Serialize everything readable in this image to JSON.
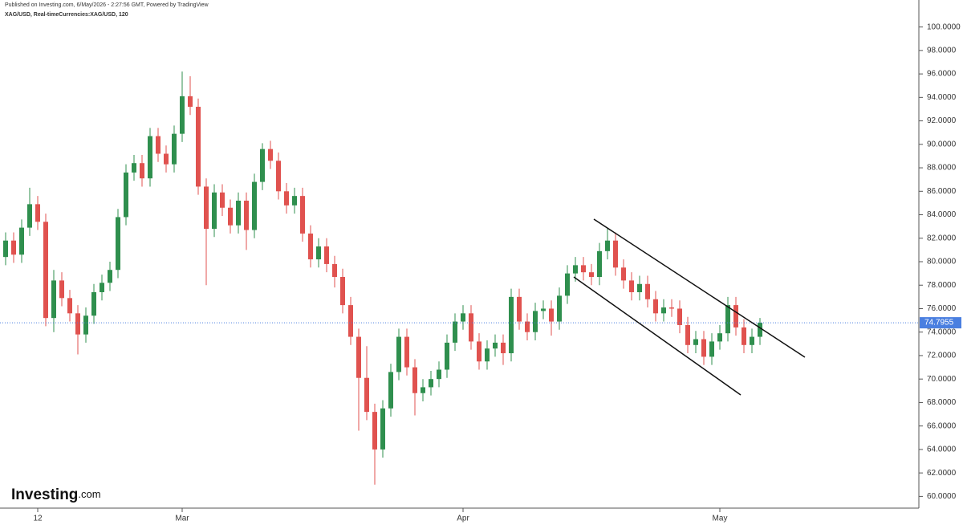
{
  "header": {
    "published": "Published on Investing.com, 6/May/2026 - 2:27:56 GMT, Powered by TradingView",
    "symbol": "XAG/USD, Real-timeCurrencies:XAG/USD, 120"
  },
  "logo": {
    "name": "Investing",
    "suffix": ".com"
  },
  "chart_data": {
    "type": "candlestick",
    "categories": [
      null,
      null,
      null,
      null,
      "12",
      null,
      null,
      null,
      null,
      null,
      null,
      null,
      null,
      null,
      null,
      null,
      null,
      null,
      null,
      null,
      null,
      null,
      "Mar",
      null,
      null,
      null,
      null,
      null,
      null,
      null,
      null,
      null,
      null,
      null,
      null,
      null,
      null,
      null,
      null,
      null,
      null,
      null,
      null,
      null,
      null,
      null,
      null,
      null,
      null,
      null,
      null,
      null,
      null,
      null,
      null,
      null,
      null,
      "Apr",
      null,
      null,
      null,
      null,
      null,
      null,
      null,
      null,
      null,
      null,
      null,
      null,
      null,
      null,
      null,
      null,
      null,
      null,
      null,
      null,
      null,
      null,
      null,
      null,
      null,
      null,
      null,
      null,
      null,
      null,
      null,
      "May",
      null,
      null,
      null,
      null,
      null
    ],
    "open": [
      80.4,
      81.8,
      80.6,
      82.9,
      84.9,
      83.4,
      75.2,
      78.4,
      76.9,
      75.6,
      73.8,
      75.4,
      77.4,
      78.2,
      79.3,
      83.8,
      87.6,
      88.4,
      87.1,
      90.7,
      89.2,
      88.3,
      90.9,
      94.1,
      93.2,
      86.4,
      82.8,
      85.9,
      84.6,
      83.1,
      85.2,
      82.7,
      86.8,
      89.6,
      88.6,
      86.0,
      84.8,
      85.6,
      82.4,
      80.2,
      81.3,
      79.8,
      78.7,
      76.3,
      73.6,
      70.1,
      67.2,
      64.0,
      67.5,
      70.6,
      73.6,
      71.0,
      68.8,
      69.3,
      70.0,
      70.8,
      73.1,
      74.9,
      75.6,
      73.2,
      71.5,
      72.6,
      73.1,
      72.2,
      77.0,
      74.9,
      74.0,
      75.8,
      76.0,
      74.9,
      77.1,
      79.0,
      79.7,
      79.1,
      78.7,
      80.9,
      81.8,
      79.5,
      78.4,
      77.4,
      78.1,
      76.8,
      75.6,
      76.1,
      76.0,
      74.6,
      72.9,
      73.4,
      71.9,
      73.2,
      73.9,
      76.3,
      74.4,
      72.9,
      73.6
    ],
    "high": [
      82.5,
      82.5,
      83.6,
      86.3,
      85.6,
      84.1,
      79.3,
      79.1,
      77.6,
      76.3,
      76.1,
      78.1,
      78.9,
      80.0,
      84.5,
      88.3,
      89.1,
      89.1,
      91.4,
      91.4,
      89.9,
      91.6,
      96.2,
      95.8,
      93.9,
      87.1,
      86.6,
      86.6,
      85.3,
      85.9,
      85.9,
      87.5,
      90.1,
      90.3,
      89.3,
      86.7,
      86.3,
      86.3,
      83.1,
      82.0,
      82.0,
      80.5,
      79.4,
      77.0,
      74.3,
      72.8,
      67.9,
      68.2,
      71.3,
      74.3,
      74.3,
      71.7,
      70.0,
      70.7,
      71.5,
      73.8,
      75.6,
      76.3,
      76.3,
      73.9,
      73.3,
      73.8,
      73.8,
      77.7,
      77.7,
      75.6,
      76.5,
      76.7,
      76.7,
      77.8,
      79.7,
      80.4,
      80.4,
      79.8,
      81.6,
      82.9,
      82.5,
      80.2,
      79.1,
      78.8,
      78.8,
      77.5,
      76.8,
      76.8,
      76.7,
      75.3,
      74.1,
      74.1,
      73.9,
      74.6,
      77.0,
      77.0,
      75.1,
      74.3,
      75.2
    ],
    "low": [
      79.7,
      79.9,
      79.9,
      82.2,
      82.7,
      74.5,
      74.0,
      76.2,
      74.9,
      72.1,
      73.1,
      74.7,
      76.7,
      77.5,
      78.6,
      83.1,
      86.9,
      86.4,
      86.4,
      88.5,
      87.6,
      87.6,
      90.2,
      92.5,
      85.7,
      78.0,
      82.1,
      83.9,
      82.4,
      82.4,
      81.0,
      82.0,
      86.1,
      87.9,
      85.3,
      84.1,
      84.1,
      81.7,
      79.5,
      79.5,
      79.1,
      77.8,
      75.6,
      72.9,
      65.6,
      66.5,
      61.0,
      63.3,
      66.8,
      69.9,
      70.3,
      66.9,
      68.1,
      68.6,
      69.3,
      70.1,
      72.4,
      74.2,
      72.5,
      70.8,
      70.8,
      71.9,
      71.2,
      71.5,
      74.2,
      73.3,
      73.3,
      75.1,
      73.7,
      74.2,
      76.4,
      78.3,
      78.4,
      78.0,
      78.0,
      80.2,
      78.8,
      77.7,
      76.7,
      76.7,
      76.1,
      74.9,
      74.9,
      75.3,
      73.9,
      72.2,
      72.2,
      71.2,
      71.2,
      72.5,
      73.2,
      73.7,
      72.2,
      72.2,
      72.9
    ],
    "close": [
      81.8,
      80.6,
      82.9,
      84.9,
      83.4,
      75.2,
      78.4,
      76.9,
      75.6,
      73.8,
      75.4,
      77.4,
      78.2,
      79.3,
      83.8,
      87.6,
      88.4,
      87.1,
      90.7,
      89.2,
      88.3,
      90.9,
      94.1,
      93.2,
      86.4,
      82.8,
      85.9,
      84.6,
      83.1,
      85.2,
      82.7,
      86.8,
      89.6,
      88.6,
      86.0,
      84.8,
      85.6,
      82.4,
      80.2,
      81.3,
      79.8,
      78.7,
      76.3,
      73.6,
      70.1,
      67.2,
      64.0,
      67.5,
      70.6,
      73.6,
      71.0,
      68.8,
      69.3,
      70.0,
      70.8,
      73.1,
      74.9,
      75.6,
      73.2,
      71.5,
      72.6,
      73.1,
      72.2,
      77.0,
      74.9,
      74.0,
      75.8,
      76.0,
      74.9,
      77.1,
      79.0,
      79.7,
      79.1,
      78.7,
      80.9,
      81.8,
      79.5,
      78.4,
      77.4,
      78.1,
      76.8,
      75.6,
      76.1,
      76.0,
      74.6,
      72.9,
      73.4,
      71.9,
      73.2,
      73.9,
      76.3,
      74.4,
      72.9,
      73.6,
      74.8
    ],
    "up_color": "#2f8f4e",
    "down_color": "#e0524f",
    "ylim": [
      59,
      102.3
    ],
    "yticks": [
      {
        "value": 60,
        "label": "60.0000"
      },
      {
        "value": 62,
        "label": "62.0000"
      },
      {
        "value": 64,
        "label": "64.0000"
      },
      {
        "value": 66,
        "label": "66.0000"
      },
      {
        "value": 68,
        "label": "68.0000"
      },
      {
        "value": 70,
        "label": "70.0000"
      },
      {
        "value": 72,
        "label": "72.0000"
      },
      {
        "value": 74,
        "label": "74.0000"
      },
      {
        "value": 76,
        "label": "76.0000"
      },
      {
        "value": 78,
        "label": "78.0000"
      },
      {
        "value": 80,
        "label": "80.0000"
      },
      {
        "value": 82,
        "label": "82.0000"
      },
      {
        "value": 84,
        "label": "84.0000"
      },
      {
        "value": 86,
        "label": "86.0000"
      },
      {
        "value": 88,
        "label": "88.0000"
      },
      {
        "value": 90,
        "label": "90.0000"
      },
      {
        "value": 92,
        "label": "92.0000"
      },
      {
        "value": 94,
        "label": "94.0000"
      },
      {
        "value": 96,
        "label": "96.0000"
      },
      {
        "value": 98,
        "label": "98.0000"
      },
      {
        "value": 100,
        "label": "100.0000"
      }
    ],
    "last_price": 74.7955,
    "last_price_color": "#4a7fe0"
  }
}
